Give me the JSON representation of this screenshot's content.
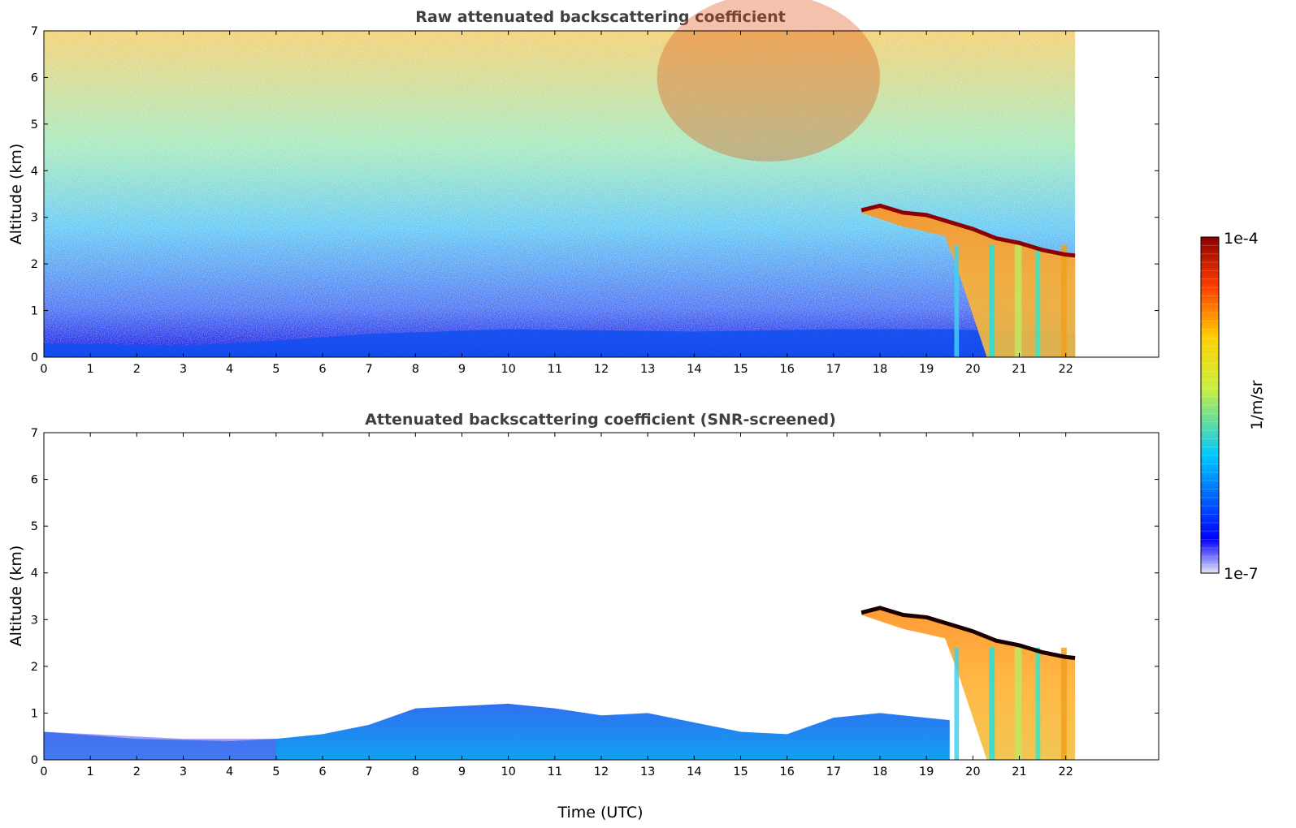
{
  "chart_data": [
    {
      "type": "heatmap",
      "title": "Raw attenuated backscattering coefficient",
      "xlabel": "",
      "ylabel": "Altitude (km)",
      "xlim": [
        0,
        24
      ],
      "ylim": [
        0,
        7
      ],
      "x_ticks": [
        "0",
        "1",
        "2",
        "3",
        "4",
        "5",
        "6",
        "7",
        "8",
        "9",
        "10",
        "11",
        "12",
        "13",
        "14",
        "15",
        "16",
        "17",
        "18",
        "19",
        "20",
        "21",
        "22"
      ],
      "y_ticks": [
        "0",
        "1",
        "2",
        "3",
        "4",
        "5",
        "6",
        "7"
      ],
      "data_extent_hours": [
        0,
        22.2
      ],
      "screened": false,
      "cloud_top_km": [
        [
          17.6,
          3.15
        ],
        [
          18.0,
          3.25
        ],
        [
          18.5,
          3.1
        ],
        [
          19.0,
          3.05
        ],
        [
          19.5,
          2.9
        ],
        [
          20.0,
          2.75
        ],
        [
          20.5,
          2.55
        ],
        [
          21.0,
          2.45
        ],
        [
          21.5,
          2.3
        ],
        [
          22.0,
          2.2
        ],
        [
          22.2,
          2.18
        ]
      ],
      "fall_streaks_hours": [
        19.6,
        20.3,
        20.8,
        21.3,
        21.9
      ]
    },
    {
      "type": "heatmap",
      "title": "Attenuated backscattering coefficient (SNR-screened)",
      "xlabel": "Time (UTC)",
      "ylabel": "Altitude (km)",
      "xlim": [
        0,
        24
      ],
      "ylim": [
        0,
        7
      ],
      "x_ticks": [
        "0",
        "1",
        "2",
        "3",
        "4",
        "5",
        "6",
        "7",
        "8",
        "9",
        "10",
        "11",
        "12",
        "13",
        "14",
        "15",
        "16",
        "17",
        "18",
        "19",
        "20",
        "21",
        "22"
      ],
      "y_ticks": [
        "0",
        "1",
        "2",
        "3",
        "4",
        "5",
        "6",
        "7"
      ],
      "data_extent_hours": [
        0,
        22.2
      ],
      "screened": true,
      "boundary_layer_top_km": [
        [
          0,
          0.6
        ],
        [
          2,
          0.45
        ],
        [
          4,
          0.4
        ],
        [
          5,
          0.45
        ],
        [
          6,
          0.55
        ],
        [
          7,
          0.75
        ],
        [
          8,
          1.1
        ],
        [
          9,
          1.15
        ],
        [
          10,
          1.2
        ],
        [
          11,
          1.1
        ],
        [
          12,
          0.95
        ],
        [
          13,
          1.0
        ],
        [
          14,
          0.8
        ],
        [
          15,
          0.6
        ],
        [
          16,
          0.55
        ],
        [
          17,
          0.9
        ],
        [
          18,
          1.0
        ],
        [
          19.5,
          0.85
        ]
      ],
      "cloud_top_km": [
        [
          17.6,
          3.15
        ],
        [
          18.0,
          3.25
        ],
        [
          18.5,
          3.1
        ],
        [
          19.0,
          3.05
        ],
        [
          19.5,
          2.9
        ],
        [
          20.0,
          2.75
        ],
        [
          20.5,
          2.55
        ],
        [
          21.0,
          2.45
        ],
        [
          21.5,
          2.3
        ],
        [
          22.0,
          2.2
        ],
        [
          22.2,
          2.18
        ]
      ]
    }
  ],
  "colorbar": {
    "label": "1/m/sr",
    "max_label": "1e-4",
    "min_label": "1e-7",
    "scale": "log",
    "colors": [
      "#e6e6f5",
      "#0000ff",
      "#00c8ff",
      "#c8f040",
      "#ffd000",
      "#ff4000",
      "#8b0000"
    ]
  }
}
